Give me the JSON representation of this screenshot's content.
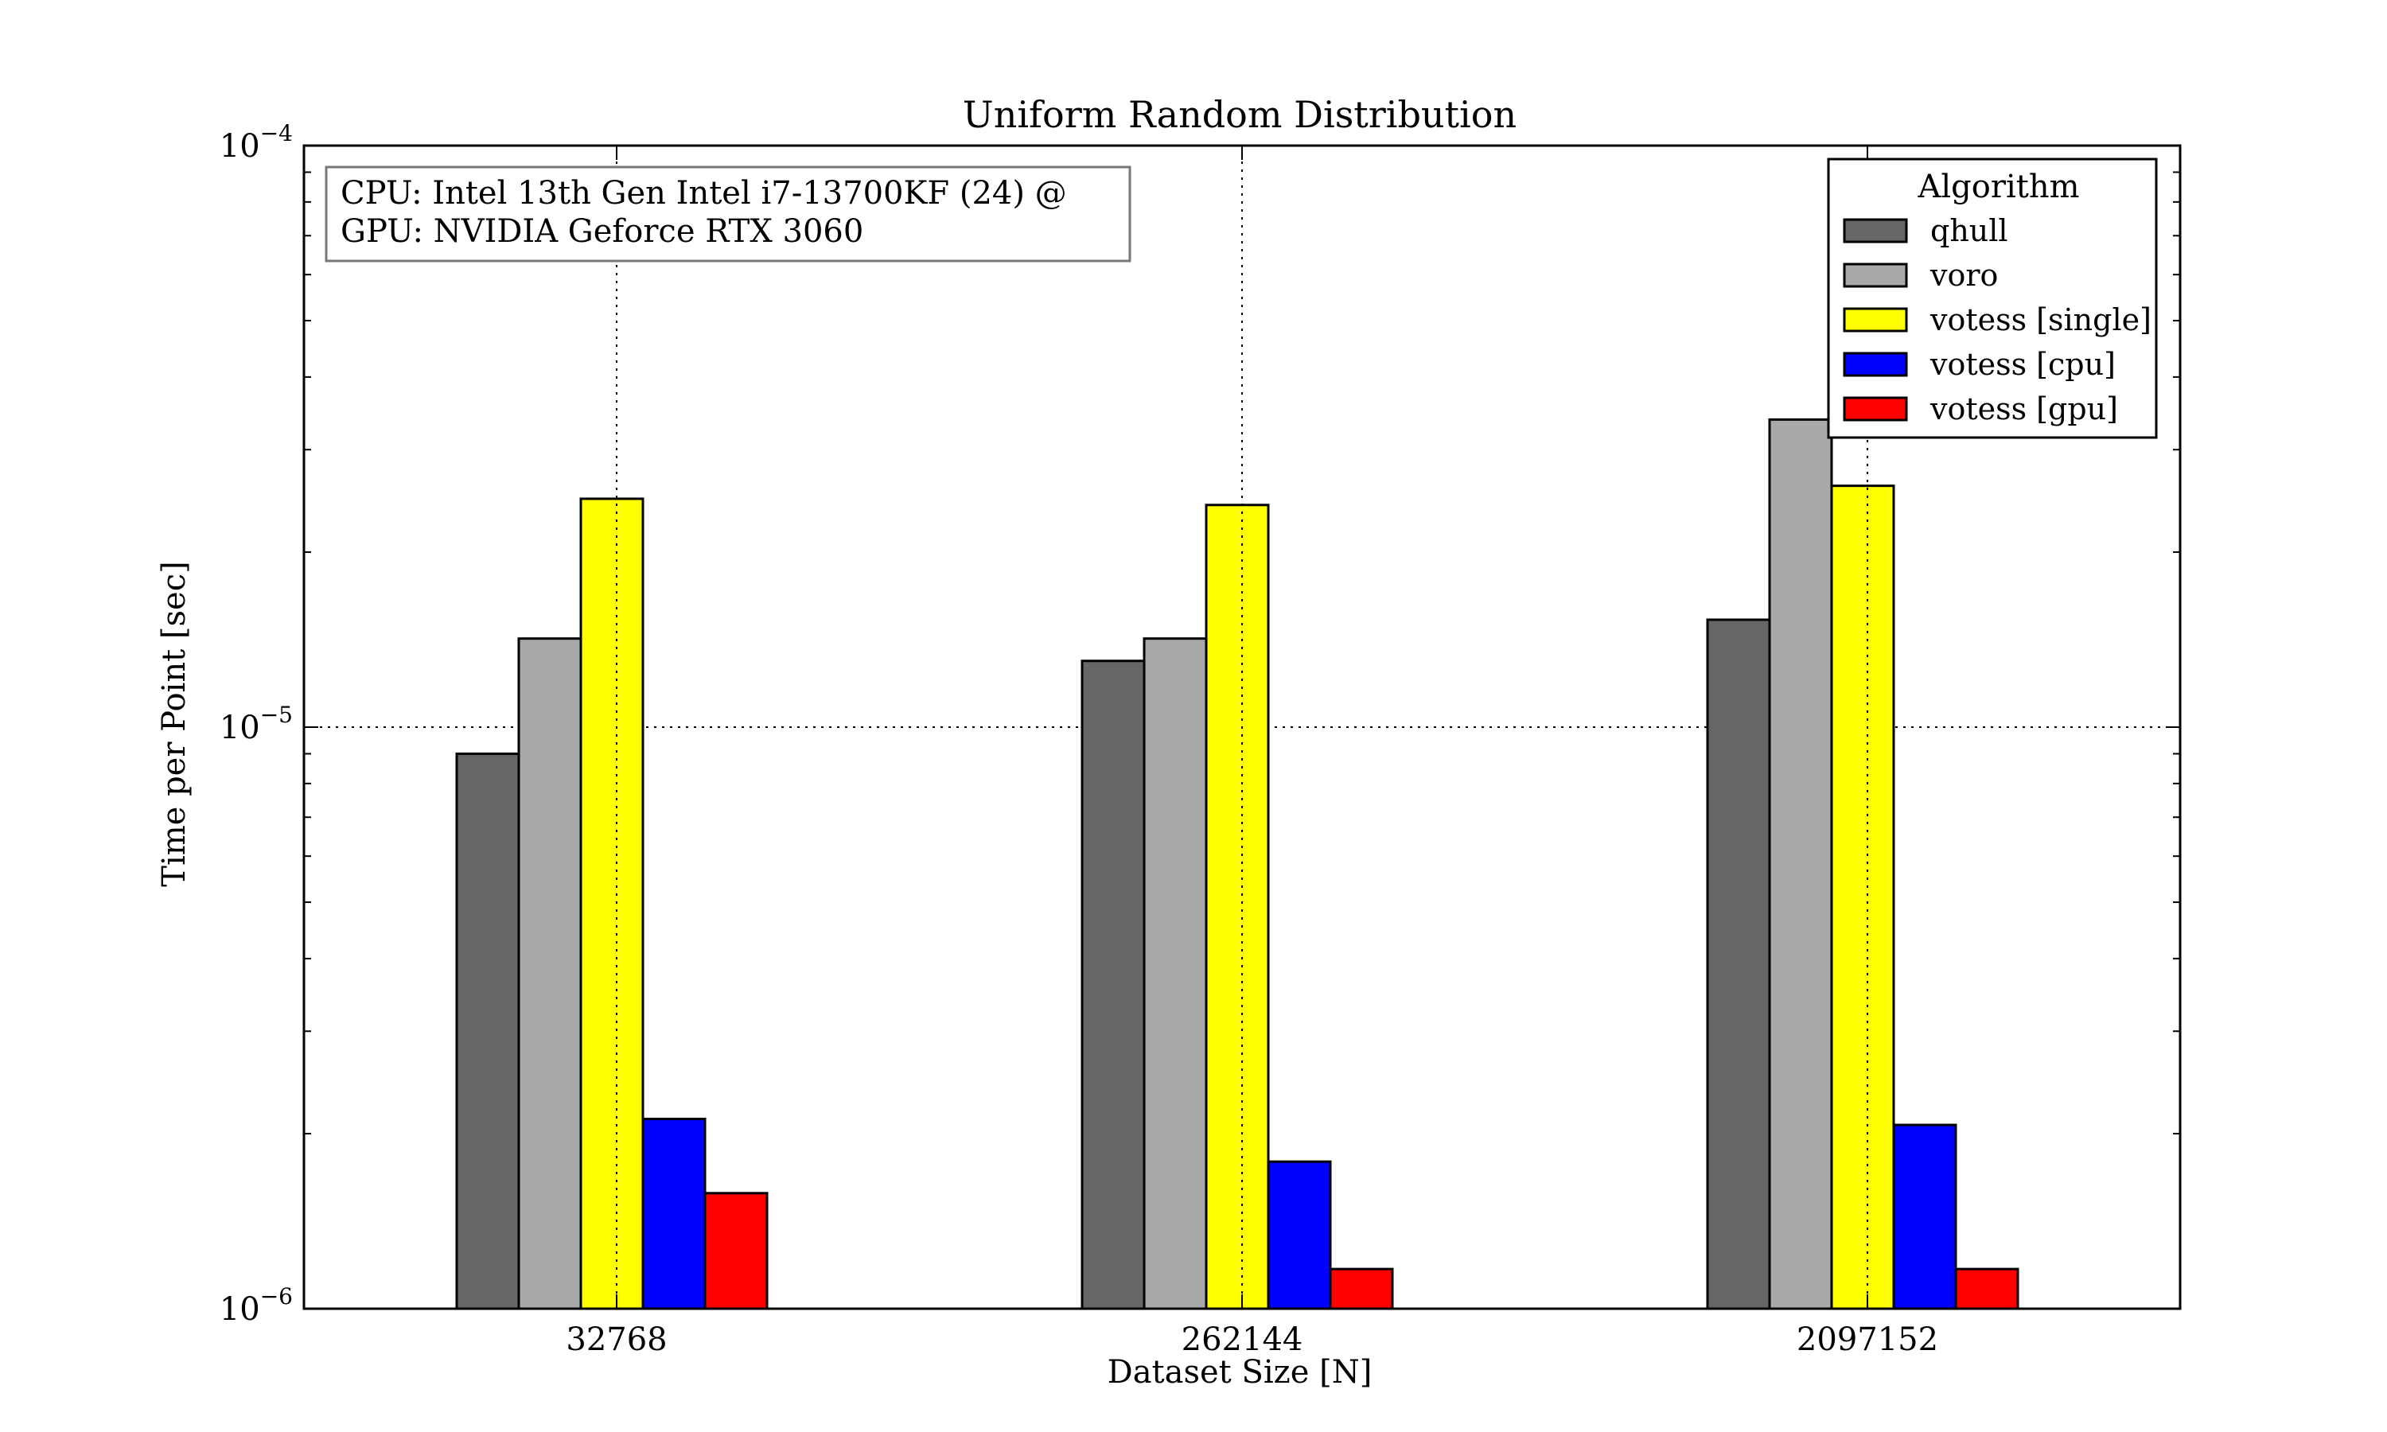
{
  "chart_data": {
    "type": "bar",
    "title": "Uniform Random Distribution",
    "xlabel": "Dataset Size [N]",
    "ylabel": "Time per Point [sec]",
    "yscale": "log",
    "ylim": [
      1e-06,
      0.0001
    ],
    "y_ticks": [
      {
        "value": 1e-06,
        "base": "10",
        "exp": "−6"
      },
      {
        "value": 1e-05,
        "base": "10",
        "exp": "−5"
      },
      {
        "value": 0.0001,
        "base": "10",
        "exp": "−4"
      }
    ],
    "categories": [
      "32768",
      "262144",
      "2097152"
    ],
    "grid": true,
    "legend_position": "top-right",
    "legend_title": "Algorithm",
    "annotation": [
      "CPU: Intel 13th Gen Intel i7-13700KF (24) @",
      "GPU: NVIDIA Geforce RTX 3060"
    ],
    "series": [
      {
        "name": "qhull",
        "color": "#666666",
        "values": [
          9e-06,
          1.3e-05,
          1.53e-05
        ]
      },
      {
        "name": "voro",
        "color": "#a9a9a9",
        "values": [
          1.42e-05,
          1.42e-05,
          3.38e-05
        ]
      },
      {
        "name": "votess [single]",
        "color": "#ffff00",
        "values": [
          2.47e-05,
          2.41e-05,
          2.6e-05
        ]
      },
      {
        "name": "votess [cpu]",
        "color": "#0000ff",
        "values": [
          2.12e-06,
          1.79e-06,
          2.07e-06
        ]
      },
      {
        "name": "votess [gpu]",
        "color": "#ff0000",
        "values": [
          1.58e-06,
          1.17e-06,
          1.17e-06
        ]
      }
    ]
  }
}
